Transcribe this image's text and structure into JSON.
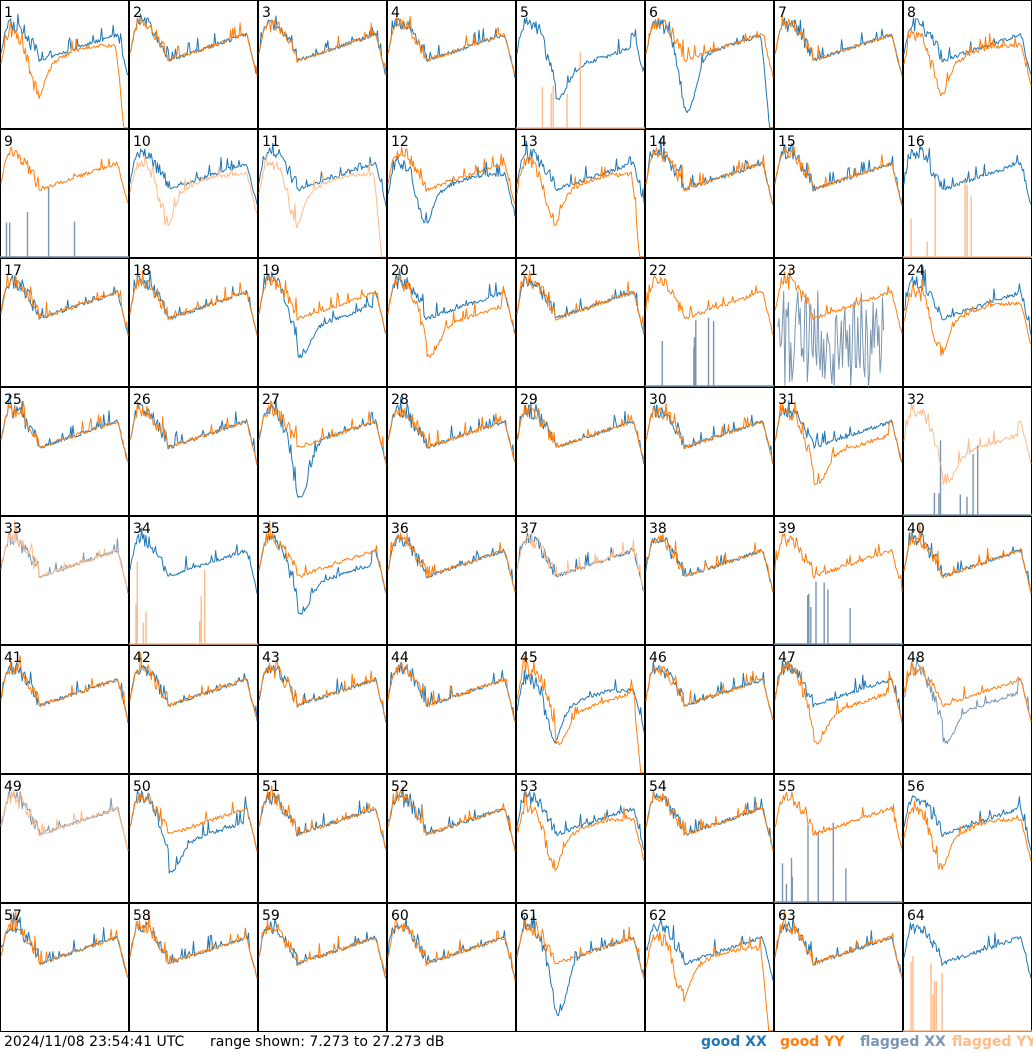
{
  "chart_data": {
    "type": "line",
    "grid": {
      "rows": 8,
      "cols": 8
    },
    "panels": [
      {
        "label": "1",
        "xx": "good",
        "yy": "good",
        "xx_shape": "flat",
        "yy_shape": "dip-rise",
        "yy_dropout": "end"
      },
      {
        "label": "2",
        "xx": "good",
        "yy": "good",
        "xx_shape": "flat",
        "yy_shape": "flat"
      },
      {
        "label": "3",
        "xx": "good",
        "yy": "good",
        "xx_shape": "flat",
        "yy_shape": "flat"
      },
      {
        "label": "4",
        "xx": "good",
        "yy": "good",
        "xx_shape": "flat",
        "yy_shape": "flat"
      },
      {
        "label": "5",
        "xx": "good",
        "yy": "none",
        "xx_shape": "dip",
        "yy_shape": "flat",
        "yy_spikes": true
      },
      {
        "label": "6",
        "xx": "good",
        "yy": "good",
        "xx_shape": "deep",
        "yy_shape": "flat",
        "xx_dropout": "end"
      },
      {
        "label": "7",
        "xx": "good",
        "yy": "good",
        "xx_shape": "flat",
        "yy_shape": "flat"
      },
      {
        "label": "8",
        "xx": "good",
        "yy": "good",
        "xx_shape": "flat",
        "yy_shape": "dip-rise"
      },
      {
        "label": "9",
        "xx": "none",
        "yy": "good",
        "xx_shape": "flat",
        "yy_shape": "flat",
        "xx_spikes": true
      },
      {
        "label": "10",
        "xx": "good",
        "yy": "flagged",
        "xx_shape": "flat",
        "yy_shape": "dip-rise"
      },
      {
        "label": "11",
        "xx": "good",
        "yy": "flagged",
        "xx_shape": "flat",
        "yy_shape": "dip-rise",
        "yy_dropout": "end"
      },
      {
        "label": "12",
        "xx": "good",
        "yy": "good",
        "xx_shape": "dip-rise",
        "yy_shape": "flat"
      },
      {
        "label": "13",
        "xx": "good",
        "yy": "good",
        "xx_shape": "flat",
        "yy_shape": "dip-rise",
        "yy_dropout": "end"
      },
      {
        "label": "14",
        "xx": "good",
        "yy": "good",
        "xx_shape": "flat",
        "yy_shape": "flat"
      },
      {
        "label": "15",
        "xx": "good",
        "yy": "good",
        "xx_shape": "flat",
        "yy_shape": "flat"
      },
      {
        "label": "16",
        "xx": "good",
        "yy": "none",
        "xx_shape": "flat",
        "yy_shape": "flat",
        "yy_spikes": true
      },
      {
        "label": "17",
        "xx": "good",
        "yy": "good",
        "xx_shape": "flat",
        "yy_shape": "flat"
      },
      {
        "label": "18",
        "xx": "good",
        "yy": "good",
        "xx_shape": "flat",
        "yy_shape": "flat"
      },
      {
        "label": "19",
        "xx": "good",
        "yy": "good",
        "xx_shape": "dip",
        "yy_shape": "flat"
      },
      {
        "label": "20",
        "xx": "good",
        "yy": "good",
        "xx_shape": "flat",
        "yy_shape": "dip"
      },
      {
        "label": "21",
        "xx": "good",
        "yy": "good",
        "xx_shape": "flat",
        "yy_shape": "flat"
      },
      {
        "label": "22",
        "xx": "none",
        "yy": "good",
        "xx_shape": "flat",
        "yy_shape": "flat",
        "xx_spikes": true
      },
      {
        "label": "23",
        "xx": "flagged",
        "yy": "good",
        "xx_shape": "noise",
        "yy_shape": "flat"
      },
      {
        "label": "24",
        "xx": "good",
        "yy": "good",
        "xx_shape": "flat",
        "yy_shape": "dip-rise"
      },
      {
        "label": "25",
        "xx": "good",
        "yy": "good",
        "xx_shape": "flat",
        "yy_shape": "flat"
      },
      {
        "label": "26",
        "xx": "good",
        "yy": "good",
        "xx_shape": "flat",
        "yy_shape": "flat"
      },
      {
        "label": "27",
        "xx": "good",
        "yy": "good",
        "xx_shape": "deep",
        "yy_shape": "flat"
      },
      {
        "label": "28",
        "xx": "good",
        "yy": "good",
        "xx_shape": "flat",
        "yy_shape": "flat"
      },
      {
        "label": "29",
        "xx": "good",
        "yy": "good",
        "xx_shape": "flat",
        "yy_shape": "flat"
      },
      {
        "label": "30",
        "xx": "good",
        "yy": "good",
        "xx_shape": "flat",
        "yy_shape": "flat"
      },
      {
        "label": "31",
        "xx": "good",
        "yy": "good",
        "xx_shape": "flat",
        "yy_shape": "dip"
      },
      {
        "label": "32",
        "xx": "none",
        "yy": "flagged",
        "xx_shape": "flat",
        "yy_shape": "dip",
        "xx_spikes": true
      },
      {
        "label": "33",
        "xx": "flagged",
        "yy": "flagged",
        "xx_shape": "flat",
        "yy_shape": "flat"
      },
      {
        "label": "34",
        "xx": "good",
        "yy": "none",
        "xx_shape": "flat",
        "yy_shape": "flat",
        "yy_spikes": true
      },
      {
        "label": "35",
        "xx": "good",
        "yy": "good",
        "xx_shape": "dip",
        "yy_shape": "flat"
      },
      {
        "label": "36",
        "xx": "good",
        "yy": "good",
        "xx_shape": "flat",
        "yy_shape": "flat"
      },
      {
        "label": "37",
        "xx": "good",
        "yy": "flagged",
        "xx_shape": "flat",
        "yy_shape": "flat"
      },
      {
        "label": "38",
        "xx": "good",
        "yy": "good",
        "xx_shape": "flat",
        "yy_shape": "flat"
      },
      {
        "label": "39",
        "xx": "none",
        "yy": "good",
        "xx_shape": "flat",
        "yy_shape": "flat",
        "xx_spikes": true
      },
      {
        "label": "40",
        "xx": "good",
        "yy": "good",
        "xx_shape": "flat",
        "yy_shape": "flat"
      },
      {
        "label": "41",
        "xx": "good",
        "yy": "good",
        "xx_shape": "flat",
        "yy_shape": "flat"
      },
      {
        "label": "42",
        "xx": "good",
        "yy": "good",
        "xx_shape": "flat",
        "yy_shape": "flat"
      },
      {
        "label": "43",
        "xx": "good",
        "yy": "good",
        "xx_shape": "flat",
        "yy_shape": "flat"
      },
      {
        "label": "44",
        "xx": "good",
        "yy": "good",
        "xx_shape": "flat",
        "yy_shape": "flat"
      },
      {
        "label": "45",
        "xx": "good",
        "yy": "good",
        "xx_shape": "dip-rise",
        "yy_shape": "dip",
        "yy_dropout": "end"
      },
      {
        "label": "46",
        "xx": "good",
        "yy": "good",
        "xx_shape": "flat",
        "yy_shape": "flat"
      },
      {
        "label": "47",
        "xx": "good",
        "yy": "good",
        "xx_shape": "flat",
        "yy_shape": "dip"
      },
      {
        "label": "48",
        "xx": "flagged",
        "yy": "good",
        "xx_shape": "dip",
        "yy_shape": "flat"
      },
      {
        "label": "49",
        "xx": "flagged",
        "yy": "flagged",
        "xx_shape": "flat",
        "yy_shape": "flat"
      },
      {
        "label": "50",
        "xx": "good",
        "yy": "good",
        "xx_shape": "dip",
        "yy_shape": "flat"
      },
      {
        "label": "51",
        "xx": "good",
        "yy": "good",
        "xx_shape": "flat",
        "yy_shape": "flat"
      },
      {
        "label": "52",
        "xx": "good",
        "yy": "good",
        "xx_shape": "flat",
        "yy_shape": "flat"
      },
      {
        "label": "53",
        "xx": "good",
        "yy": "good",
        "xx_shape": "flat",
        "yy_shape": "dip-rise"
      },
      {
        "label": "54",
        "xx": "good",
        "yy": "good",
        "xx_shape": "flat",
        "yy_shape": "flat"
      },
      {
        "label": "55",
        "xx": "none",
        "yy": "good",
        "xx_shape": "flat",
        "yy_shape": "flat",
        "xx_spikes": true
      },
      {
        "label": "56",
        "xx": "good",
        "yy": "good",
        "xx_shape": "flat",
        "yy_shape": "dip-rise"
      },
      {
        "label": "57",
        "xx": "good",
        "yy": "good",
        "xx_shape": "flat",
        "yy_shape": "flat"
      },
      {
        "label": "58",
        "xx": "good",
        "yy": "good",
        "xx_shape": "flat",
        "yy_shape": "flat"
      },
      {
        "label": "59",
        "xx": "good",
        "yy": "good",
        "xx_shape": "flat",
        "yy_shape": "flat"
      },
      {
        "label": "60",
        "xx": "good",
        "yy": "good",
        "xx_shape": "flat",
        "yy_shape": "flat"
      },
      {
        "label": "61",
        "xx": "good",
        "yy": "good",
        "xx_shape": "deep",
        "yy_shape": "flat"
      },
      {
        "label": "62",
        "xx": "good",
        "yy": "good",
        "xx_shape": "flat",
        "yy_shape": "dip-rise",
        "yy_dropout": "end"
      },
      {
        "label": "63",
        "xx": "good",
        "yy": "good",
        "xx_shape": "flat",
        "yy_shape": "flat"
      },
      {
        "label": "64",
        "xx": "good",
        "yy": "none",
        "xx_shape": "flat",
        "yy_shape": "flat",
        "yy_spikes": true
      }
    ]
  },
  "footer": {
    "timestamp": "2024/11/08 23:54:41 UTC",
    "range_text": "range shown: 7.273 to 27.273 dB",
    "legend": [
      {
        "label": "good XX",
        "color": "#1f77b4"
      },
      {
        "label": "good YY",
        "color": "#ff7f0e"
      },
      {
        "label": "flagged XX",
        "color": "#7a96b2"
      },
      {
        "label": "flagged YY",
        "color": "#ffbb88"
      }
    ]
  },
  "colors": {
    "good_xx": "#1f77b4",
    "good_yy": "#ff7f0e",
    "flagged_xx": "#7a96b2",
    "flagged_yy": "#ffbb88"
  }
}
